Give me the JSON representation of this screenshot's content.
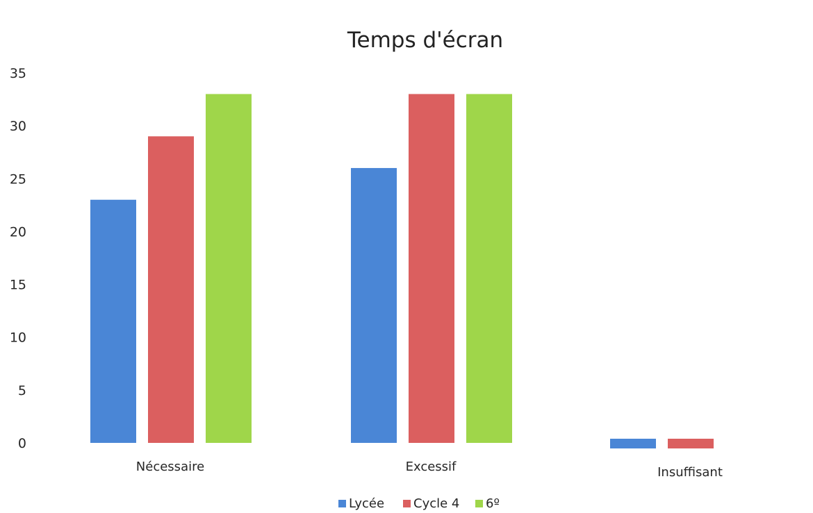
{
  "chart_data": {
    "type": "bar",
    "title": "Temps d'écran",
    "xlabel": "",
    "ylabel": "",
    "ylim": [
      0,
      35
    ],
    "yticks": [
      0,
      5,
      10,
      15,
      20,
      25,
      30,
      35
    ],
    "categories": [
      "Nécessaire",
      "Excessif",
      "Insuffisant"
    ],
    "series": [
      {
        "name": "Lycée",
        "color": "#4a86d6",
        "values": [
          23,
          26,
          0.4
        ]
      },
      {
        "name": "Cycle 4",
        "color": "#db5f5f",
        "values": [
          29,
          33,
          0.4
        ]
      },
      {
        "name": "6º",
        "color": "#9fd64a",
        "values": [
          33,
          33,
          0
        ]
      }
    ],
    "grid": false,
    "legend_position": "bottom"
  }
}
